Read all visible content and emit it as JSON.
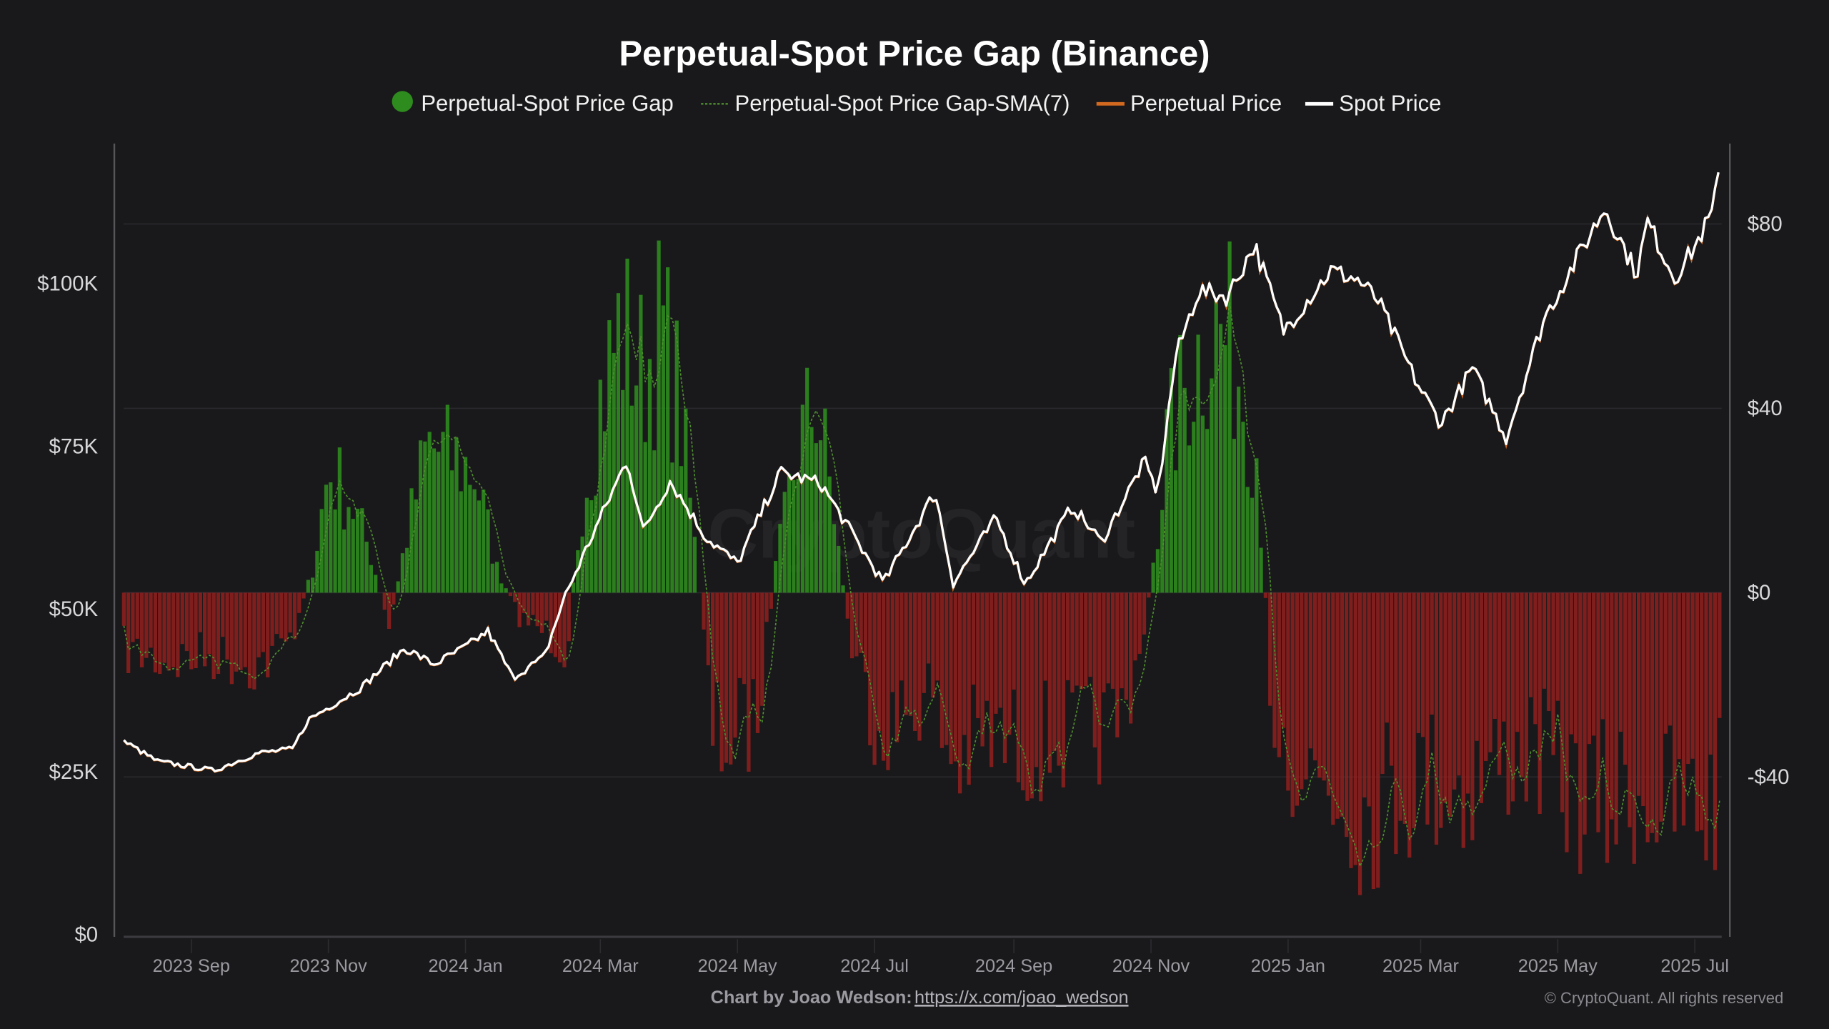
{
  "chart_data": {
    "type": "bar+line",
    "title": "Perpetual-Spot Price Gap (Binance)",
    "legend": [
      {
        "name": "Perpetual-Spot Price Gap",
        "color": "#2e8b1e",
        "symbol": "dot"
      },
      {
        "name": "Perpetual-Spot Price Gap-SMA(7)",
        "color": "#4f8f2f",
        "symbol": "dashed-line"
      },
      {
        "name": "Perpetual Price",
        "color": "#d2691e",
        "symbol": "line"
      },
      {
        "name": "Spot Price",
        "color": "#ffffff",
        "symbol": "line"
      }
    ],
    "legend_position": "top",
    "x_range": [
      "2023-08-02",
      "2025-07-12"
    ],
    "x_ticks": [
      "2023 Sep",
      "2023 Nov",
      "2024 Jan",
      "2024 Mar",
      "2024 May",
      "2024 Jul",
      "2024 Sep",
      "2024 Nov",
      "2025 Jan",
      "2025 Mar",
      "2025 May",
      "2025 Jul"
    ],
    "x_tick_dates": [
      "2023-09-01",
      "2023-11-01",
      "2024-01-01",
      "2024-03-01",
      "2024-05-01",
      "2024-07-01",
      "2024-09-01",
      "2024-11-01",
      "2025-01-01",
      "2025-03-01",
      "2025-05-01",
      "2025-07-01"
    ],
    "left_axis": {
      "label": "",
      "ticks": [
        "$0",
        "$25K",
        "$50K",
        "$75K",
        "$100K"
      ],
      "tick_values": [
        0,
        25000,
        50000,
        75000,
        100000
      ],
      "range": [
        0,
        120000
      ]
    },
    "right_axis": {
      "label": "",
      "ticks": [
        "-$40",
        "$0",
        "$40",
        "$80"
      ],
      "tick_values": [
        -40,
        0,
        40,
        80
      ],
      "range": [
        -74,
        98
      ]
    },
    "grid": "horizontal",
    "colors": {
      "positive": "#2e8b1e",
      "negative": "#a3201f",
      "sma": "#4f8f2f",
      "perp": "#d2691e",
      "spot": "#ffffff",
      "background": "#19191b"
    },
    "spot_price": [
      [
        "2023-08-02",
        29700
      ],
      [
        "2023-08-17",
        26600
      ],
      [
        "2023-09-11",
        25200
      ],
      [
        "2023-10-01",
        27900
      ],
      [
        "2023-10-16",
        28500
      ],
      [
        "2023-10-23",
        33000
      ],
      [
        "2023-11-15",
        37800
      ],
      [
        "2023-12-05",
        44000
      ],
      [
        "2023-12-18",
        41500
      ],
      [
        "2024-01-01",
        44200
      ],
      [
        "2024-01-11",
        46600
      ],
      [
        "2024-01-22",
        39500
      ],
      [
        "2024-02-05",
        42600
      ],
      [
        "2024-02-14",
        51800
      ],
      [
        "2024-02-28",
        62500
      ],
      [
        "2024-03-13",
        73000
      ],
      [
        "2024-03-20",
        62000
      ],
      [
        "2024-04-01",
        69700
      ],
      [
        "2024-04-17",
        61000
      ],
      [
        "2024-05-01",
        57000
      ],
      [
        "2024-05-20",
        71000
      ],
      [
        "2024-06-07",
        69300
      ],
      [
        "2024-06-24",
        60000
      ],
      [
        "2024-07-05",
        54000
      ],
      [
        "2024-07-28",
        68000
      ],
      [
        "2024-08-05",
        54000
      ],
      [
        "2024-08-24",
        64000
      ],
      [
        "2024-09-06",
        53900
      ],
      [
        "2024-09-27",
        65800
      ],
      [
        "2024-10-10",
        60300
      ],
      [
        "2024-10-29",
        72700
      ],
      [
        "2024-11-04",
        67800
      ],
      [
        "2024-11-12",
        88700
      ],
      [
        "2024-11-22",
        98900
      ],
      [
        "2024-12-05",
        98000
      ],
      [
        "2024-12-17",
        106000
      ],
      [
        "2024-12-30",
        92800
      ],
      [
        "2025-01-20",
        102000
      ],
      [
        "2025-02-01",
        100600
      ],
      [
        "2025-02-10",
        97400
      ],
      [
        "2025-02-28",
        84300
      ],
      [
        "2025-03-10",
        78500
      ],
      [
        "2025-03-24",
        87000
      ],
      [
        "2025-04-08",
        76300
      ],
      [
        "2025-04-25",
        94700
      ],
      [
        "2025-05-22",
        111700
      ],
      [
        "2025-06-05",
        101500
      ],
      [
        "2025-06-10",
        109500
      ],
      [
        "2025-06-22",
        100900
      ],
      [
        "2025-07-01",
        105700
      ],
      [
        "2025-07-09",
        111000
      ],
      [
        "2025-07-12",
        117500
      ]
    ],
    "price_gap": [
      [
        "2023-08-02",
        -12
      ],
      [
        "2023-08-20",
        -14
      ],
      [
        "2023-09-10",
        -13
      ],
      [
        "2023-10-01",
        -15
      ],
      [
        "2023-10-15",
        -10
      ],
      [
        "2023-10-25",
        5
      ],
      [
        "2023-11-01",
        25
      ],
      [
        "2023-11-10",
        20
      ],
      [
        "2023-11-20",
        8
      ],
      [
        "2023-11-28",
        -8
      ],
      [
        "2023-12-05",
        10
      ],
      [
        "2023-12-15",
        30
      ],
      [
        "2023-12-25",
        28
      ],
      [
        "2024-01-05",
        25
      ],
      [
        "2024-01-15",
        5
      ],
      [
        "2024-01-25",
        -5
      ],
      [
        "2024-02-05",
        -8
      ],
      [
        "2024-02-15",
        -12
      ],
      [
        "2024-02-22",
        20
      ],
      [
        "2024-03-01",
        40
      ],
      [
        "2024-03-10",
        55
      ],
      [
        "2024-03-20",
        45
      ],
      [
        "2024-03-28",
        55
      ],
      [
        "2024-04-05",
        40
      ],
      [
        "2024-04-12",
        10
      ],
      [
        "2024-04-20",
        -30
      ],
      [
        "2024-05-01",
        -30
      ],
      [
        "2024-05-10",
        -25
      ],
      [
        "2024-05-18",
        5
      ],
      [
        "2024-05-28",
        30
      ],
      [
        "2024-06-05",
        40
      ],
      [
        "2024-06-12",
        20
      ],
      [
        "2024-06-20",
        -10
      ],
      [
        "2024-07-01",
        -25
      ],
      [
        "2024-07-10",
        -28
      ],
      [
        "2024-07-25",
        -20
      ],
      [
        "2024-08-05",
        -35
      ],
      [
        "2024-08-20",
        -30
      ],
      [
        "2024-09-05",
        -32
      ],
      [
        "2024-09-20",
        -30
      ],
      [
        "2024-10-05",
        -30
      ],
      [
        "2024-10-20",
        -25
      ],
      [
        "2024-10-30",
        -5
      ],
      [
        "2024-11-08",
        30
      ],
      [
        "2024-11-18",
        45
      ],
      [
        "2024-11-28",
        55
      ],
      [
        "2024-12-08",
        50
      ],
      [
        "2024-12-18",
        30
      ],
      [
        "2024-12-25",
        -25
      ],
      [
        "2025-01-05",
        -35
      ],
      [
        "2025-01-20",
        -40
      ],
      [
        "2025-02-05",
        -45
      ],
      [
        "2025-02-20",
        -40
      ],
      [
        "2025-03-05",
        -38
      ],
      [
        "2025-03-20",
        -40
      ],
      [
        "2025-04-05",
        -35
      ],
      [
        "2025-04-20",
        -32
      ],
      [
        "2025-05-05",
        -40
      ],
      [
        "2025-05-20",
        -45
      ],
      [
        "2025-06-05",
        -40
      ],
      [
        "2025-06-20",
        -45
      ],
      [
        "2025-07-01",
        -45
      ],
      [
        "2025-07-12",
        -42
      ]
    ]
  },
  "watermark": "CryptoQuant",
  "footer": {
    "credit_label": "Chart by Joao Wedson:",
    "credit_link": "https://x.com/joao_wedson",
    "copyright": "© CryptoQuant. All rights reserved"
  }
}
